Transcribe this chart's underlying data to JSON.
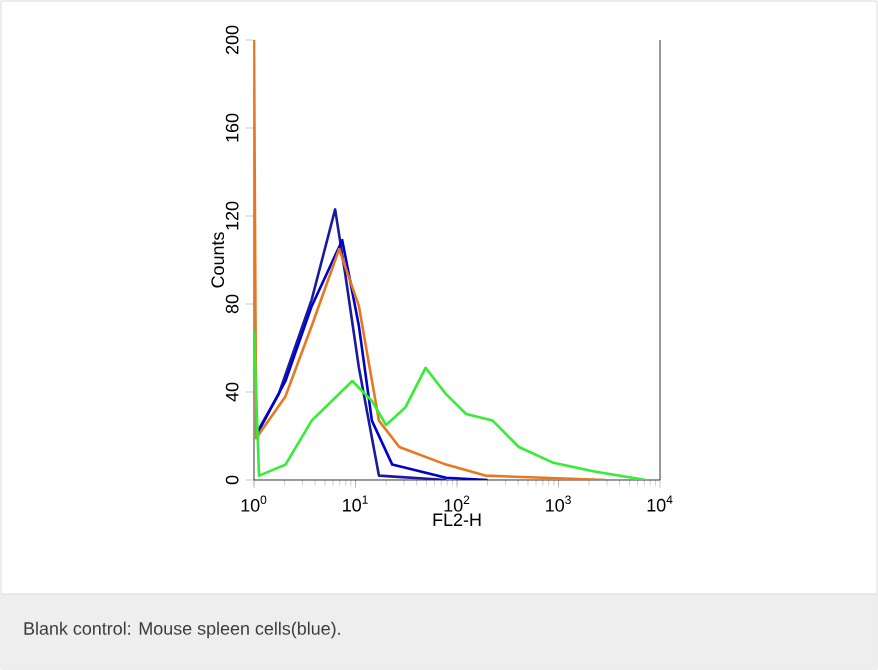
{
  "chart_data": {
    "type": "line",
    "xlabel": "FL2-H",
    "ylabel": "Counts",
    "log": "x",
    "xlim": [
      1,
      10000
    ],
    "ylim": [
      0,
      200
    ],
    "xticks": [
      {
        "value": 1,
        "label": "10$^{0}$"
      },
      {
        "value": 10,
        "label": "10$^{1}$"
      },
      {
        "value": 100,
        "label": "10$^{2}$"
      },
      {
        "value": 1000,
        "label": "10$^{3}$"
      },
      {
        "value": 10000,
        "label": "10$^{4}$"
      }
    ],
    "yticks": [
      0,
      40,
      80,
      120,
      160,
      200
    ],
    "grid": false,
    "series": [
      {
        "color": "#1a1aa0",
        "x": [
          1.05,
          1.75,
          3.7,
          6.3,
          7.9,
          10.8,
          17,
          78
        ],
        "values": [
          21,
          39,
          82,
          123,
          94,
          51,
          2,
          0
        ]
      },
      {
        "color": "#0000cc",
        "x": [
          1.05,
          2.04,
          3.7,
          7.4,
          10.8,
          14.5,
          23,
          78,
          200
        ],
        "values": [
          20,
          45,
          79,
          109,
          70,
          27,
          7,
          1,
          0
        ]
      },
      {
        "color": "#e87722",
        "x": [
          1,
          1.05,
          2.04,
          3.7,
          6.9,
          10.8,
          17,
          27,
          78,
          190,
          2950
        ],
        "values": [
          200,
          19,
          38,
          70,
          105,
          79,
          27,
          15,
          7,
          2,
          0
        ]
      },
      {
        "color": "#33ee33",
        "x": [
          1,
          1.12,
          2.04,
          3.7,
          9.3,
          14.5,
          20,
          31,
          49,
          78,
          123,
          224,
          407,
          871,
          2188,
          7244
        ],
        "values": [
          68,
          2,
          7,
          27,
          45,
          36,
          25,
          33,
          51,
          39,
          30,
          27,
          15,
          8,
          4,
          0
        ]
      }
    ],
    "annotations": [
      "Blank control: Mouse spleen cells(blue)."
    ]
  }
}
